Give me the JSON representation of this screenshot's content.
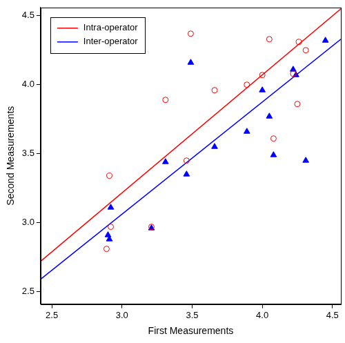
{
  "chart_data": {
    "type": "scatter",
    "x_label": "First Measurements",
    "y_label": "Second Measurements",
    "xlim": [
      2.42,
      4.56
    ],
    "ylim": [
      2.41,
      4.56
    ],
    "xticks": [
      2.5,
      {
        "value": 3,
        "label": "3.0"
      },
      3.5,
      {
        "value": 4,
        "label": "4.0"
      },
      4.5
    ],
    "yticks": [
      2.5,
      {
        "value": 3,
        "label": "3.0"
      },
      3.5,
      {
        "value": 4,
        "label": "4.0"
      },
      4.5
    ],
    "grid": false,
    "legend": "top-left",
    "series": [
      {
        "type": "scatter",
        "color": "#ff0000",
        "marker": "circle-open",
        "x": [
          2.89,
          2.91,
          2.92,
          3.21,
          3.31,
          3.46,
          3.49,
          3.66,
          3.89,
          4.0,
          4.05,
          4.08,
          4.22,
          4.25,
          4.26,
          4.31
        ],
        "values": [
          2.81,
          3.34,
          2.97,
          2.97,
          3.89,
          3.45,
          4.37,
          3.96,
          4.0,
          4.07,
          4.33,
          3.61,
          4.08,
          3.86,
          4.31,
          4.25
        ]
      },
      {
        "type": "scatter",
        "color": "#0000ff",
        "marker": "triangle",
        "x": [
          2.9,
          2.91,
          2.92,
          3.21,
          3.31,
          3.46,
          3.49,
          3.66,
          3.89,
          4.0,
          4.05,
          4.08,
          4.22,
          4.24,
          4.31,
          4.45
        ],
        "values": [
          2.91,
          2.88,
          3.11,
          2.96,
          3.44,
          3.35,
          4.16,
          3.55,
          3.66,
          3.96,
          3.77,
          3.49,
          4.11,
          4.07,
          3.45,
          4.32
        ]
      },
      {
        "type": "line",
        "name": "Intra-operator",
        "color": "#ff0000",
        "line_style": "solid",
        "x": [
          2.42,
          4.56
        ],
        "values": [
          2.72,
          4.55
        ]
      },
      {
        "type": "line",
        "name": "Inter-operator",
        "color": "#0000ff",
        "line_style": "solid",
        "x": [
          2.42,
          4.56
        ],
        "values": [
          2.59,
          4.33
        ]
      }
    ]
  }
}
